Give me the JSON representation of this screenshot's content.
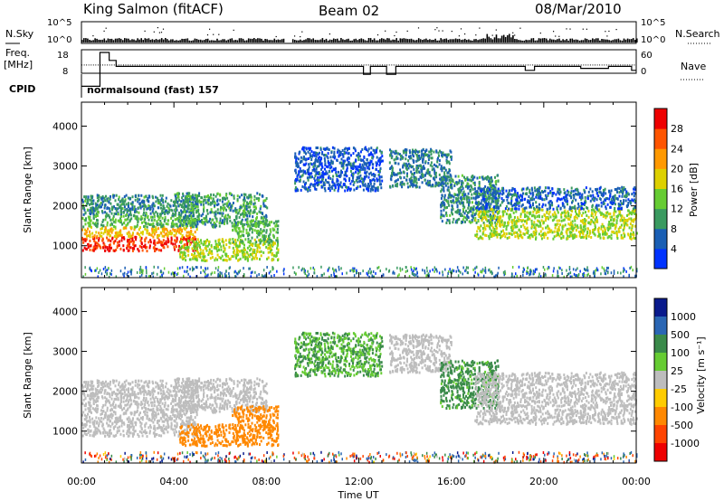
{
  "title": {
    "station": "King Salmon (fitACF)",
    "beam": "Beam 02",
    "date": "08/Mar/2010"
  },
  "top_panels": {
    "nsky_label": "N.Sky",
    "nsearch_label": "N.Search",
    "nsky_ticks": [
      "10^5",
      "10^0"
    ],
    "nsearch_ticks": [
      "10^5",
      "10^0"
    ],
    "freq_label_1": "Freq.",
    "freq_label_2": "[MHz]",
    "freq_ticks": [
      "18",
      "8"
    ],
    "nave_label": "Nave",
    "nave_ticks": [
      "60",
      "0"
    ],
    "cpid_label": "CPID",
    "cpid_text": "normalsound (fast) 157"
  },
  "axes": {
    "ylabel": "Slant Range [km]",
    "xlabel": "Time UT",
    "yticks": [
      "1000",
      "2000",
      "3000",
      "4000"
    ],
    "xticks": [
      "00:00",
      "04:00",
      "08:00",
      "12:00",
      "16:00",
      "20:00",
      "00:00"
    ]
  },
  "colors": {
    "power": [
      "#0033ff",
      "#1a5fb4",
      "#3a9a60",
      "#66cc33",
      "#ddd000",
      "#ff9900",
      "#ff5500",
      "#ee0000"
    ],
    "velocity": [
      "#0a1a8c",
      "#2a66b4",
      "#3a8a4a",
      "#66cc33",
      "#bdbdbd",
      "#ffcc00",
      "#ff8800",
      "#ff4400",
      "#ee0000"
    ],
    "ground_scatter": "#bdbdbd"
  },
  "power_legend": {
    "label": "Power [dB]",
    "ticks": [
      "28",
      "24",
      "20",
      "16",
      "12",
      "8",
      "4"
    ]
  },
  "velocity_legend": {
    "label": "Velocity  [m s⁻¹]",
    "ticks": [
      "1000",
      "500",
      "100",
      "25",
      "-25",
      "-100",
      "-500",
      "-1000"
    ]
  },
  "chart_data": {
    "type": "heatmap",
    "x_unit": "UT hours",
    "xlim": [
      0,
      24
    ],
    "ylim": [
      200,
      4600
    ],
    "y_unit": "km",
    "power_range_dB": [
      0,
      32
    ],
    "velocity_range": [
      -1200,
      1200
    ],
    "data_gap_UT": [
      8.8,
      9.1
    ],
    "scatter_regions": [
      {
        "t0": 0.0,
        "t1": 5.0,
        "r0": 900,
        "r1": 1250,
        "power": 28,
        "velocity": 20,
        "ground": true
      },
      {
        "t0": 0.0,
        "t1": 5.0,
        "r0": 1250,
        "r1": 1500,
        "power": 20,
        "velocity": -20,
        "ground": true
      },
      {
        "t0": 0.0,
        "t1": 5.0,
        "r0": 1500,
        "r1": 1800,
        "power": 12,
        "velocity": 0,
        "ground": true
      },
      {
        "t0": 0.0,
        "t1": 5.0,
        "r0": 1800,
        "r1": 2300,
        "power": 9,
        "velocity": 10,
        "ground": true
      },
      {
        "t0": 4.0,
        "t1": 8.0,
        "r0": 1500,
        "r1": 2350,
        "power": 10,
        "velocity": 0,
        "ground": true
      },
      {
        "t0": 4.2,
        "t1": 8.5,
        "r0": 650,
        "r1": 1200,
        "power": 16,
        "velocity": -200,
        "ground": false
      },
      {
        "t0": 6.5,
        "t1": 8.5,
        "r0": 1100,
        "r1": 1650,
        "power": 12,
        "velocity": -150,
        "ground": false
      },
      {
        "t0": 13.3,
        "t1": 16.0,
        "r0": 2500,
        "r1": 3450,
        "power": 8,
        "velocity": 10,
        "ground": true
      },
      {
        "t0": 15.5,
        "t1": 18.0,
        "r0": 1600,
        "r1": 2800,
        "power": 9,
        "velocity": 120,
        "ground": false
      },
      {
        "t0": 17.0,
        "t1": 24.0,
        "r0": 1200,
        "r1": 1950,
        "power": 16,
        "velocity": 0,
        "ground": true
      },
      {
        "t0": 17.0,
        "t1": 24.0,
        "r0": 1950,
        "r1": 2500,
        "power": 6,
        "velocity": 5,
        "ground": true
      },
      {
        "t0": 9.2,
        "t1": 13.0,
        "r0": 2400,
        "r1": 3500,
        "power": 5,
        "velocity": 100,
        "ground": false
      }
    ],
    "cpid": 157,
    "program": "normalsound (fast)"
  }
}
